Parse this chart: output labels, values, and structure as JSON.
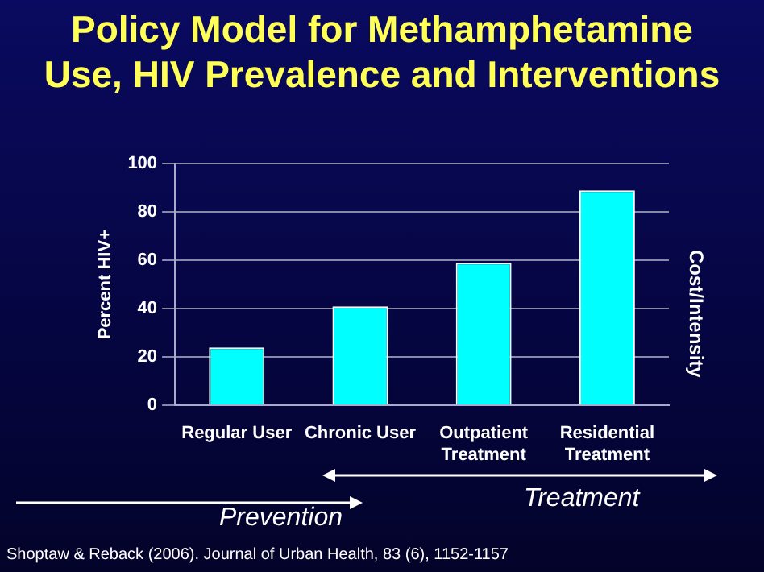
{
  "chart_data": {
    "type": "bar",
    "title": "Policy Model for Methamphetamine Use, HIV Prevalence and Interventions",
    "ylabel": "Percent HIV+",
    "categories": [
      "Regular User",
      "Chronic User",
      "Outpatient Treatment",
      "Residential Treatment"
    ],
    "values": [
      24,
      41,
      59,
      89
    ],
    "color": "#00ffff",
    "ylim": [
      0,
      100
    ],
    "yticks": [
      0,
      20,
      40,
      60,
      80,
      100
    ],
    "grid": "y",
    "legend": false,
    "annotations": [
      "Cost/Intensity",
      "Prevention",
      "Treatment",
      "Shoptaw & Reback (2006). Journal of Urban Health, 83 (6), 1152-1157"
    ]
  }
}
